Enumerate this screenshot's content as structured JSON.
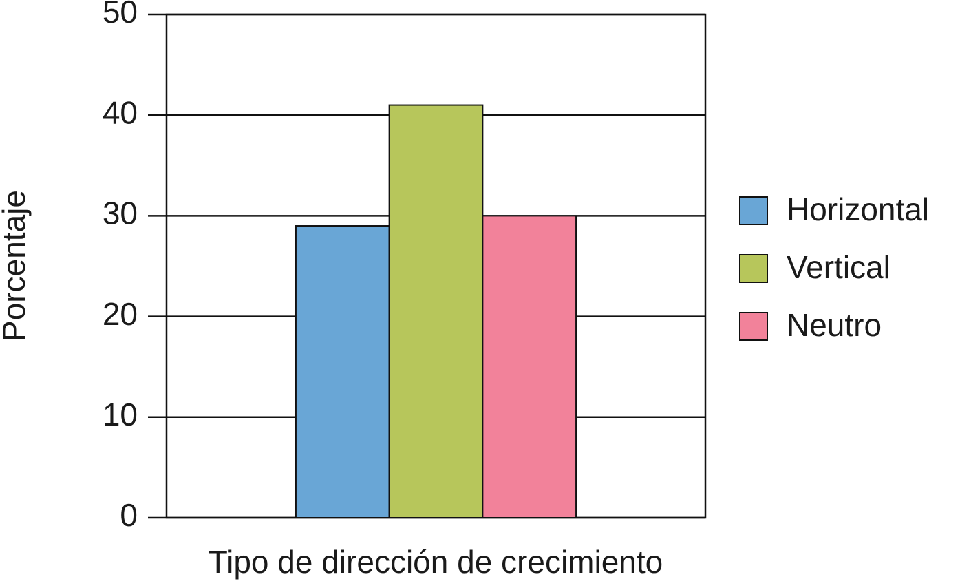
{
  "chart_data": {
    "type": "bar",
    "xlabel": "Tipo de dirección de crecimiento",
    "ylabel": "Porcentaje",
    "categories": [
      null
    ],
    "series": [
      {
        "name": "Horizontal",
        "color": "#69a6d6",
        "values": [
          29
        ]
      },
      {
        "name": "Vertical",
        "color": "#b7c65b",
        "values": [
          41
        ]
      },
      {
        "name": "Neutro",
        "color": "#f2829a",
        "values": [
          30
        ]
      }
    ],
    "ylim": [
      0,
      50
    ],
    "yticks": [
      0,
      10,
      20,
      30,
      40,
      50
    ],
    "grid": true,
    "legend": "right"
  }
}
